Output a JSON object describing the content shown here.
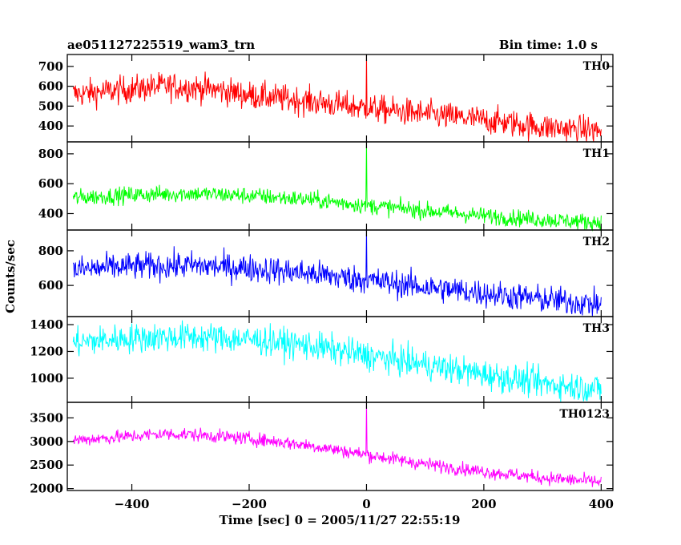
{
  "header": {
    "title": "ae051127225519_wam3_trn",
    "bin_time": "Bin time: 1.0 s"
  },
  "chart_data": {
    "type": "line",
    "title": "ae051127225519_wam3_trn",
    "subtitle": "Bin time: 1.0 s",
    "xlabel": "Time [sec] 0 = 2005/11/27 22:55:19",
    "ylabel": "Counts/sec",
    "xlim": [
      -510,
      420
    ],
    "x_ticks": [
      -400,
      -200,
      0,
      200,
      400
    ],
    "x_tick_labels": [
      "−400",
      "−200",
      "0",
      "200",
      "400"
    ],
    "bin_time_s": 1.0,
    "x_range": [
      -500,
      400
    ],
    "grid": false,
    "series": [
      {
        "name": "TH0",
        "color": "#ff0000",
        "ylim": [
          320,
          760
        ],
        "y_ticks": [
          400,
          500,
          600,
          700
        ],
        "noise_amplitude": 35,
        "spike": {
          "x": 0,
          "peak": 760
        },
        "trend": [
          {
            "x": -500,
            "y": 560
          },
          {
            "x": -400,
            "y": 585
          },
          {
            "x": -350,
            "y": 600
          },
          {
            "x": -300,
            "y": 595
          },
          {
            "x": -250,
            "y": 580
          },
          {
            "x": -200,
            "y": 555
          },
          {
            "x": -100,
            "y": 525
          },
          {
            "x": 0,
            "y": 490
          },
          {
            "x": 100,
            "y": 460
          },
          {
            "x": 200,
            "y": 430
          },
          {
            "x": 300,
            "y": 395
          },
          {
            "x": 400,
            "y": 375
          }
        ]
      },
      {
        "name": "TH1",
        "color": "#00ff00",
        "ylim": [
          290,
          880
        ],
        "y_ticks": [
          400,
          600,
          800
        ],
        "noise_amplitude": 28,
        "spike": {
          "x": 0,
          "peak": 880
        },
        "trend": [
          {
            "x": -500,
            "y": 505
          },
          {
            "x": -400,
            "y": 525
          },
          {
            "x": -300,
            "y": 535
          },
          {
            "x": -200,
            "y": 520
          },
          {
            "x": -100,
            "y": 495
          },
          {
            "x": 0,
            "y": 455
          },
          {
            "x": 100,
            "y": 420
          },
          {
            "x": 200,
            "y": 385
          },
          {
            "x": 300,
            "y": 360
          },
          {
            "x": 400,
            "y": 340
          }
        ]
      },
      {
        "name": "TH2",
        "color": "#0000ff",
        "ylim": [
          420,
          920
        ],
        "y_ticks": [
          600,
          800
        ],
        "noise_amplitude": 40,
        "spike": {
          "x": 0,
          "peak": 920
        },
        "trend": [
          {
            "x": -500,
            "y": 690
          },
          {
            "x": -400,
            "y": 710
          },
          {
            "x": -300,
            "y": 715
          },
          {
            "x": -200,
            "y": 700
          },
          {
            "x": -100,
            "y": 670
          },
          {
            "x": 0,
            "y": 630
          },
          {
            "x": 100,
            "y": 590
          },
          {
            "x": 200,
            "y": 555
          },
          {
            "x": 300,
            "y": 520
          },
          {
            "x": 400,
            "y": 490
          }
        ]
      },
      {
        "name": "TH3",
        "color": "#00ffff",
        "ylim": [
          820,
          1460
        ],
        "y_ticks": [
          1000,
          1200,
          1400
        ],
        "noise_amplitude": 55,
        "spike": null,
        "trend": [
          {
            "x": -500,
            "y": 1265
          },
          {
            "x": -400,
            "y": 1300
          },
          {
            "x": -300,
            "y": 1310
          },
          {
            "x": -200,
            "y": 1290
          },
          {
            "x": -100,
            "y": 1245
          },
          {
            "x": 0,
            "y": 1170
          },
          {
            "x": 100,
            "y": 1100
          },
          {
            "x": 200,
            "y": 1030
          },
          {
            "x": 300,
            "y": 960
          },
          {
            "x": 400,
            "y": 920
          }
        ]
      },
      {
        "name": "TH0123",
        "color": "#ff00ff",
        "ylim": [
          1960,
          3830
        ],
        "y_ticks": [
          2000,
          2500,
          3000,
          3500
        ],
        "noise_amplitude": 70,
        "spike": {
          "x": 0,
          "peak": 3830
        },
        "trend": [
          {
            "x": -500,
            "y": 3030
          },
          {
            "x": -400,
            "y": 3110
          },
          {
            "x": -350,
            "y": 3160
          },
          {
            "x": -300,
            "y": 3150
          },
          {
            "x": -200,
            "y": 3060
          },
          {
            "x": -100,
            "y": 2920
          },
          {
            "x": 0,
            "y": 2720
          },
          {
            "x": 100,
            "y": 2520
          },
          {
            "x": 200,
            "y": 2360
          },
          {
            "x": 300,
            "y": 2230
          },
          {
            "x": 400,
            "y": 2140
          }
        ]
      }
    ]
  }
}
